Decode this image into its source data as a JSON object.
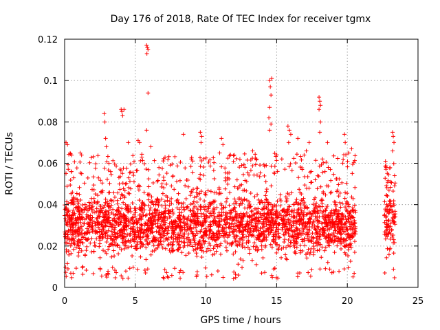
{
  "chart_data": {
    "type": "scatter",
    "title": "Day 176 of 2018, Rate Of TEC Index for receiver tgmx",
    "xlabel": "GPS time / hours",
    "ylabel": "ROTI / TECUs",
    "xlim": [
      0,
      25
    ],
    "ylim": [
      0,
      0.12
    ],
    "xticks": [
      0,
      5,
      10,
      15,
      20,
      25
    ],
    "yticks": [
      0,
      0.02,
      0.04,
      0.06,
      0.08,
      0.1,
      0.12
    ],
    "xtick_labels": [
      "0",
      "5",
      "10",
      "15",
      "20",
      "25"
    ],
    "ytick_labels": [
      "0",
      "0.02",
      "0.04",
      "0.06",
      "0.08",
      "0.1",
      "0.12"
    ],
    "grid": true,
    "marker": "+",
    "color": "#ff0000",
    "series": [
      {
        "name": "ROTI",
        "segments": [
          {
            "x_start": 0.0,
            "x_end": 20.6,
            "y_typical": [
              0.01,
              0.045
            ],
            "y_low": 0.004,
            "y_high": 0.065
          },
          {
            "x_start": 22.6,
            "x_end": 23.4,
            "y_typical": [
              0.01,
              0.05
            ],
            "y_low": 0.004,
            "y_high": 0.06
          }
        ],
        "outliers": [
          {
            "x": 0.1,
            "y": 0.07
          },
          {
            "x": 0.2,
            "y": 0.069
          },
          {
            "x": 2.8,
            "y": 0.084
          },
          {
            "x": 2.85,
            "y": 0.08
          },
          {
            "x": 2.9,
            "y": 0.072
          },
          {
            "x": 2.95,
            "y": 0.068
          },
          {
            "x": 4.0,
            "y": 0.086
          },
          {
            "x": 4.05,
            "y": 0.085
          },
          {
            "x": 4.1,
            "y": 0.083
          },
          {
            "x": 4.2,
            "y": 0.086
          },
          {
            "x": 5.8,
            "y": 0.117
          },
          {
            "x": 5.85,
            "y": 0.116
          },
          {
            "x": 5.9,
            "y": 0.115
          },
          {
            "x": 5.82,
            "y": 0.113
          },
          {
            "x": 5.9,
            "y": 0.094
          },
          {
            "x": 5.8,
            "y": 0.076
          },
          {
            "x": 14.5,
            "y": 0.1
          },
          {
            "x": 14.55,
            "y": 0.097
          },
          {
            "x": 14.6,
            "y": 0.093
          },
          {
            "x": 14.5,
            "y": 0.087
          },
          {
            "x": 14.45,
            "y": 0.082
          },
          {
            "x": 14.6,
            "y": 0.079
          },
          {
            "x": 14.5,
            "y": 0.076
          },
          {
            "x": 14.65,
            "y": 0.101
          },
          {
            "x": 18.0,
            "y": 0.092
          },
          {
            "x": 18.05,
            "y": 0.09
          },
          {
            "x": 18.1,
            "y": 0.088
          },
          {
            "x": 18.0,
            "y": 0.086
          },
          {
            "x": 18.1,
            "y": 0.08
          },
          {
            "x": 18.05,
            "y": 0.075
          },
          {
            "x": 9.6,
            "y": 0.075
          },
          {
            "x": 9.7,
            "y": 0.073
          },
          {
            "x": 9.65,
            "y": 0.07
          },
          {
            "x": 8.4,
            "y": 0.074
          },
          {
            "x": 11.1,
            "y": 0.072
          },
          {
            "x": 11.2,
            "y": 0.069
          },
          {
            "x": 5.2,
            "y": 0.071
          },
          {
            "x": 5.3,
            "y": 0.07
          },
          {
            "x": 4.5,
            "y": 0.07
          },
          {
            "x": 6.1,
            "y": 0.068
          },
          {
            "x": 15.8,
            "y": 0.078
          },
          {
            "x": 15.9,
            "y": 0.076
          },
          {
            "x": 16.0,
            "y": 0.074
          },
          {
            "x": 15.85,
            "y": 0.07
          },
          {
            "x": 17.3,
            "y": 0.07
          },
          {
            "x": 16.5,
            "y": 0.072
          },
          {
            "x": 17.1,
            "y": 0.066
          },
          {
            "x": 18.6,
            "y": 0.07
          },
          {
            "x": 19.8,
            "y": 0.074
          },
          {
            "x": 19.85,
            "y": 0.07
          },
          {
            "x": 20.3,
            "y": 0.067
          },
          {
            "x": 20.1,
            "y": 0.065
          },
          {
            "x": 23.2,
            "y": 0.075
          },
          {
            "x": 23.25,
            "y": 0.073
          },
          {
            "x": 23.3,
            "y": 0.07
          },
          {
            "x": 23.2,
            "y": 0.066
          },
          {
            "x": 22.7,
            "y": 0.061
          },
          {
            "x": 22.75,
            "y": 0.058
          },
          {
            "x": 13.3,
            "y": 0.066
          },
          {
            "x": 12.4,
            "y": 0.062
          },
          {
            "x": 1.1,
            "y": 0.065
          },
          {
            "x": 1.2,
            "y": 0.064
          },
          {
            "x": 12.0,
            "y": 0.064
          }
        ]
      }
    ]
  }
}
